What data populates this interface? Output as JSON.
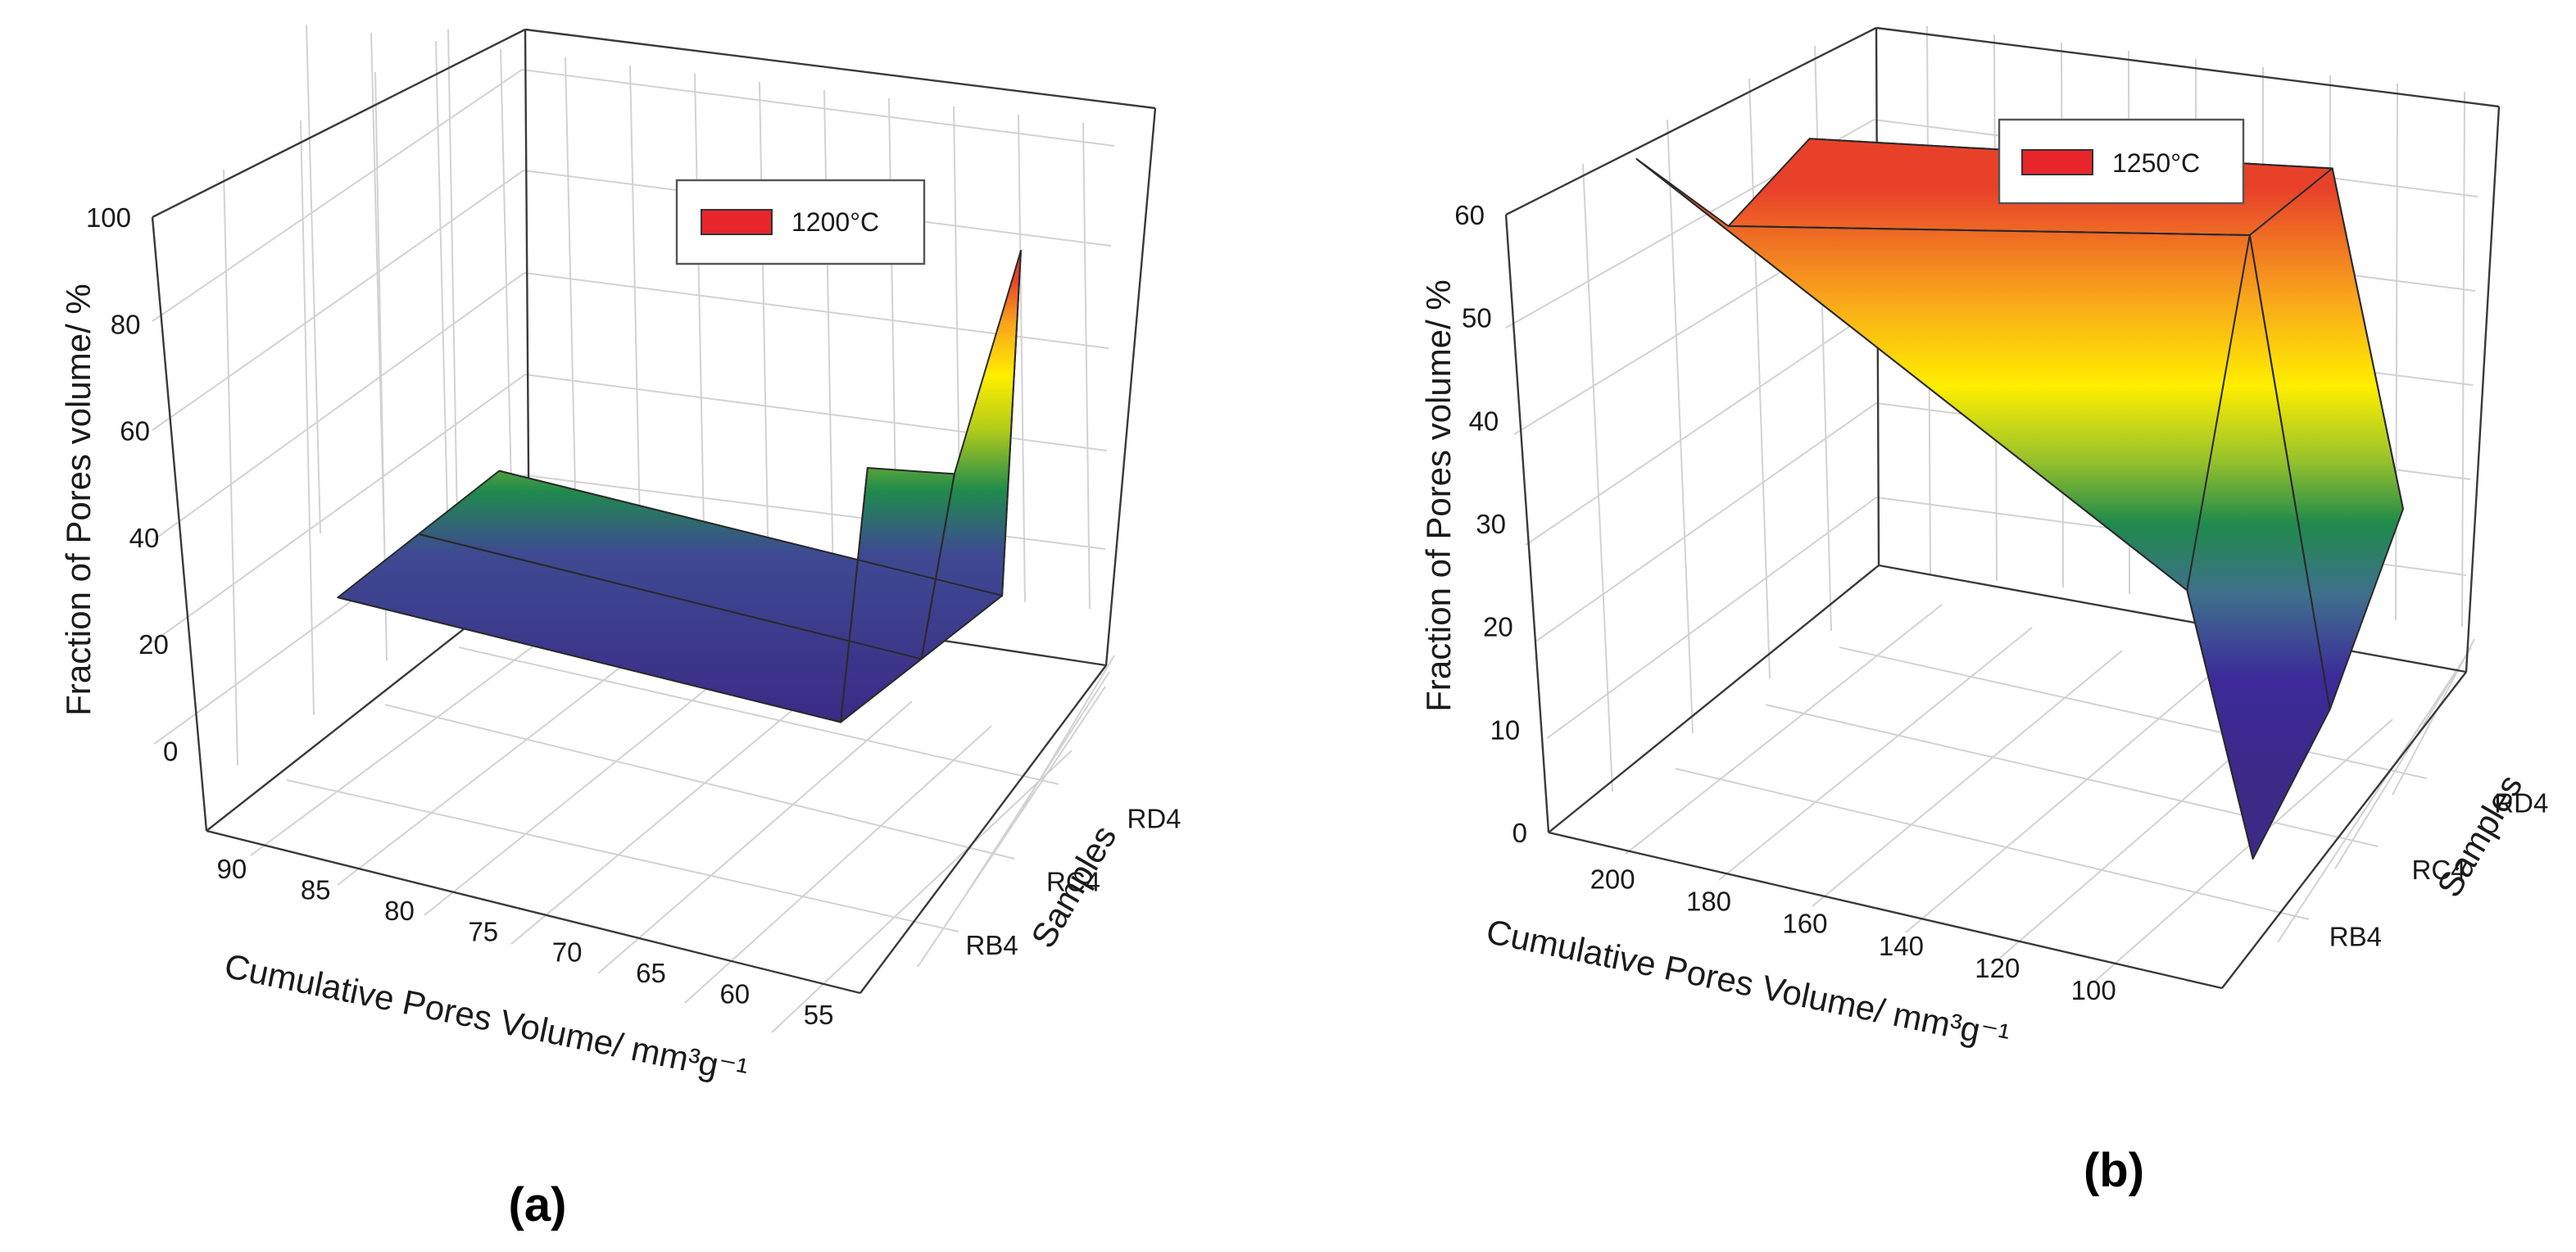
{
  "chart_data": [
    {
      "type": "surface3d",
      "panel_label": "(a)",
      "legend": {
        "label": "1200°C",
        "color": "#e8262b"
      },
      "xlabel": "Cumulative Pores Volume/ mm³g⁻¹",
      "ylabel": "Fraction of Pores volume/ %",
      "zlabel": "Samples",
      "x_ticks": [
        "90",
        "85",
        "80",
        "75",
        "70",
        "65",
        "60",
        "55"
      ],
      "y_ticks": [
        "0",
        "20",
        "40",
        "60",
        "80",
        "100"
      ],
      "samples": [
        "RB4",
        "RC4",
        "RD4"
      ],
      "xlim": [
        92,
        53
      ],
      "ylim": [
        -15,
        100
      ],
      "surface": {
        "x": [
          88,
          58,
          55
        ],
        "rows": [
          {
            "sample": "RB4",
            "y": [
              20,
              20,
              70
            ]
          },
          {
            "sample": "RC4",
            "y": [
              20,
              20,
              57
            ]
          },
          {
            "sample": "RD4",
            "y": [
              20,
              20,
              87
            ]
          }
        ]
      }
    },
    {
      "type": "surface3d",
      "panel_label": "(b)",
      "legend": {
        "label": "1250°C",
        "color": "#e8262b"
      },
      "xlabel": "Cumulative Pores Volume/ mm³g⁻¹",
      "ylabel": "Fraction of Pores volume/ %",
      "zlabel": "Samples",
      "x_ticks": [
        "200",
        "180",
        "160",
        "140",
        "120",
        "100"
      ],
      "y_ticks": [
        "0",
        "10",
        "20",
        "30",
        "40",
        "50",
        "60"
      ],
      "samples": [
        "RB4",
        "RC4",
        "RD4"
      ],
      "xlim": [
        215,
        75
      ],
      "ylim": [
        0,
        60
      ],
      "surface": {
        "x": [
          205,
          95,
          85
        ],
        "rows": [
          {
            "sample": "RB4",
            "y": [
              60,
              30,
              5
            ]
          },
          {
            "sample": "RC4",
            "y": [
              47,
              58,
              13
            ]
          },
          {
            "sample": "RD4",
            "y": [
              49,
              58,
              26
            ]
          }
        ]
      }
    }
  ]
}
